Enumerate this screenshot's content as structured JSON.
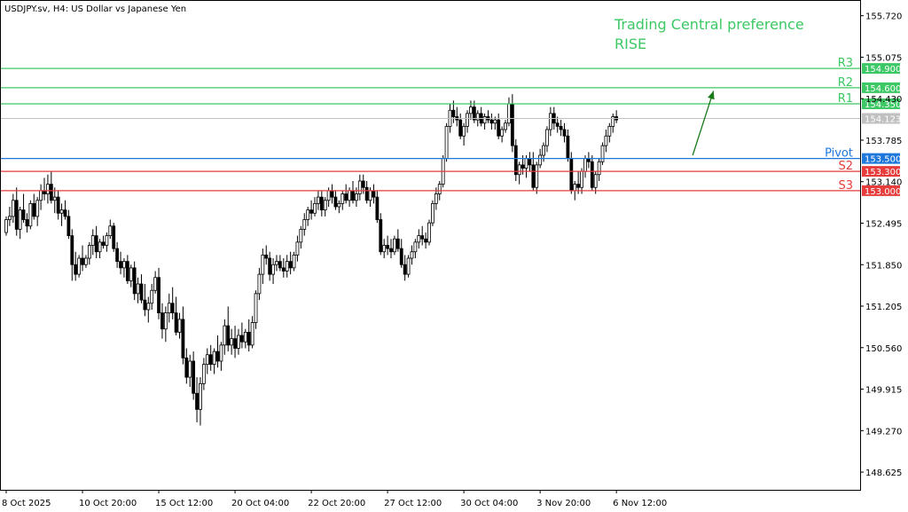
{
  "chart_data": {
    "type": "candlestick",
    "title": "USDJPY.sv, H4:  US Dollar vs Japanese Yen",
    "annotation": {
      "line1": "Trading Central preference",
      "line2": "RISE",
      "color": "#3cc864"
    },
    "ylim": [
      148.35,
      155.95
    ],
    "y_ticks": [
      155.72,
      155.075,
      154.43,
      153.785,
      153.14,
      152.495,
      151.85,
      151.205,
      150.56,
      149.915,
      149.27,
      148.625
    ],
    "y_tick_labels": [
      "155.720",
      "155.075",
      "154.430",
      "153.785",
      "153.140",
      "152.495",
      "151.850",
      "151.205",
      "150.560",
      "149.915",
      "149.270",
      "148.625"
    ],
    "x_tick_labels": [
      {
        "bar": 0,
        "label": "8 Oct 2025"
      },
      {
        "bar": 22,
        "label": "10 Oct 20:00"
      },
      {
        "bar": 44,
        "label": "15 Oct 12:00"
      },
      {
        "bar": 66,
        "label": "20 Oct 04:00"
      },
      {
        "bar": 88,
        "label": "22 Oct 20:00"
      },
      {
        "bar": 110,
        "label": "27 Oct 12:00"
      },
      {
        "bar": 132,
        "label": "30 Oct 04:00"
      },
      {
        "bar": 154,
        "label": "3 Nov 20:00"
      },
      {
        "bar": 176,
        "label": "6 Nov 12:00"
      }
    ],
    "levels": [
      {
        "name": "R3",
        "value": 154.9,
        "label": "154.900",
        "color": "#3cc864"
      },
      {
        "name": "R2",
        "value": 154.6,
        "label": "154.600",
        "color": "#3cc864"
      },
      {
        "name": "R1",
        "value": 154.35,
        "label": "154.350",
        "color": "#3cc864"
      },
      {
        "name": "Pivot",
        "value": 153.5,
        "label": "153.500",
        "color": "#1e78dc"
      },
      {
        "name": "S2",
        "value": 153.3,
        "label": "153.300",
        "color": "#e63c3c"
      },
      {
        "name": "S3",
        "value": 153.0,
        "label": "153.000",
        "color": "#e63c3c"
      }
    ],
    "current_price": {
      "value": 154.123,
      "label": "154.123",
      "color": "#c0c0c0"
    },
    "arrow": {
      "from": {
        "bar": 198,
        "price": 153.55
      },
      "to": {
        "bar": 204,
        "price": 154.55
      },
      "color": "#1a7a1a"
    },
    "candles": [
      [
        152.35,
        152.6,
        152.3,
        152.55
      ],
      [
        152.55,
        152.75,
        152.45,
        152.6
      ],
      [
        152.6,
        152.95,
        152.5,
        152.85
      ],
      [
        152.85,
        153.05,
        152.3,
        152.4
      ],
      [
        152.4,
        152.75,
        152.25,
        152.7
      ],
      [
        152.7,
        152.95,
        152.5,
        152.55
      ],
      [
        152.55,
        152.65,
        152.35,
        152.45
      ],
      [
        152.45,
        152.85,
        152.4,
        152.8
      ],
      [
        152.8,
        152.95,
        152.55,
        152.6
      ],
      [
        152.6,
        152.9,
        152.45,
        152.85
      ],
      [
        152.85,
        153.1,
        152.7,
        153.0
      ],
      [
        153.0,
        153.2,
        152.85,
        152.95
      ],
      [
        152.95,
        153.25,
        152.8,
        153.1
      ],
      [
        153.1,
        153.3,
        152.8,
        152.85
      ],
      [
        152.85,
        153.05,
        152.65,
        152.9
      ],
      [
        152.9,
        153.0,
        152.55,
        152.65
      ],
      [
        152.65,
        152.8,
        152.45,
        152.7
      ],
      [
        152.7,
        152.85,
        152.55,
        152.6
      ],
      [
        152.6,
        152.7,
        152.25,
        152.3
      ],
      [
        152.3,
        152.4,
        151.6,
        151.85
      ],
      [
        151.85,
        152.05,
        151.6,
        151.7
      ],
      [
        151.7,
        152.0,
        151.65,
        151.95
      ],
      [
        151.95,
        152.15,
        151.75,
        151.85
      ],
      [
        151.85,
        152.0,
        151.8,
        151.95
      ],
      [
        151.95,
        152.2,
        151.85,
        152.15
      ],
      [
        152.15,
        152.4,
        152.0,
        152.3
      ],
      [
        152.3,
        152.45,
        151.95,
        152.05
      ],
      [
        152.05,
        152.25,
        151.95,
        152.2
      ],
      [
        152.2,
        152.3,
        152.1,
        152.15
      ],
      [
        152.15,
        152.35,
        152.05,
        152.3
      ],
      [
        152.3,
        152.55,
        152.25,
        152.45
      ],
      [
        152.45,
        152.5,
        152.05,
        152.1
      ],
      [
        152.1,
        152.2,
        151.8,
        151.9
      ],
      [
        151.9,
        152.05,
        151.7,
        151.8
      ],
      [
        151.8,
        151.95,
        151.65,
        151.9
      ],
      [
        151.9,
        152.0,
        151.55,
        151.6
      ],
      [
        151.6,
        151.85,
        151.5,
        151.8
      ],
      [
        151.8,
        151.9,
        151.3,
        151.4
      ],
      [
        151.4,
        151.65,
        151.25,
        151.55
      ],
      [
        151.55,
        151.7,
        151.25,
        151.3
      ],
      [
        151.3,
        151.55,
        151.05,
        151.15
      ],
      [
        151.15,
        151.35,
        150.95,
        151.25
      ],
      [
        151.25,
        151.55,
        151.15,
        151.45
      ],
      [
        151.45,
        151.75,
        151.4,
        151.65
      ],
      [
        151.65,
        151.8,
        151.0,
        151.1
      ],
      [
        151.1,
        151.25,
        150.7,
        150.85
      ],
      [
        150.85,
        151.2,
        150.65,
        151.1
      ],
      [
        151.1,
        151.4,
        150.95,
        151.25
      ],
      [
        151.25,
        151.5,
        151.0,
        151.1
      ],
      [
        151.1,
        151.35,
        150.75,
        150.8
      ],
      [
        150.8,
        151.1,
        150.7,
        151.0
      ],
      [
        151.0,
        151.2,
        150.3,
        150.4
      ],
      [
        150.4,
        150.55,
        150.0,
        150.1
      ],
      [
        150.1,
        150.45,
        149.95,
        150.35
      ],
      [
        150.35,
        150.5,
        149.75,
        149.85
      ],
      [
        149.85,
        150.1,
        149.4,
        149.6
      ],
      [
        149.6,
        150.1,
        149.35,
        150.0
      ],
      [
        150.0,
        150.4,
        149.9,
        150.3
      ],
      [
        150.3,
        150.55,
        150.15,
        150.45
      ],
      [
        150.45,
        150.6,
        150.2,
        150.3
      ],
      [
        150.3,
        150.55,
        150.15,
        150.5
      ],
      [
        150.5,
        150.75,
        150.25,
        150.35
      ],
      [
        150.35,
        150.65,
        150.2,
        150.6
      ],
      [
        150.6,
        151.0,
        150.45,
        150.9
      ],
      [
        150.9,
        151.2,
        150.5,
        150.6
      ],
      [
        150.6,
        150.85,
        150.45,
        150.7
      ],
      [
        150.7,
        150.9,
        150.4,
        150.55
      ],
      [
        150.55,
        150.85,
        150.45,
        150.75
      ],
      [
        150.75,
        150.95,
        150.55,
        150.65
      ],
      [
        150.65,
        150.85,
        150.55,
        150.8
      ],
      [
        150.8,
        151.0,
        150.5,
        150.6
      ],
      [
        150.6,
        151.05,
        150.55,
        150.95
      ],
      [
        150.95,
        151.45,
        150.85,
        151.4
      ],
      [
        151.4,
        151.8,
        151.3,
        151.7
      ],
      [
        151.7,
        152.1,
        151.55,
        152.0
      ],
      [
        152.0,
        152.15,
        151.85,
        151.95
      ],
      [
        151.95,
        152.05,
        151.6,
        151.7
      ],
      [
        151.7,
        151.95,
        151.55,
        151.85
      ],
      [
        151.85,
        152.0,
        151.75,
        151.9
      ],
      [
        151.9,
        152.0,
        151.75,
        151.8
      ],
      [
        151.8,
        151.95,
        151.65,
        151.75
      ],
      [
        151.75,
        152.0,
        151.65,
        151.9
      ],
      [
        151.9,
        152.05,
        151.7,
        151.8
      ],
      [
        151.8,
        152.05,
        151.75,
        152.0
      ],
      [
        152.0,
        152.3,
        151.9,
        152.2
      ],
      [
        152.2,
        152.45,
        152.1,
        152.4
      ],
      [
        152.4,
        152.65,
        152.3,
        152.55
      ],
      [
        152.55,
        152.75,
        152.45,
        152.7
      ],
      [
        152.7,
        152.85,
        152.55,
        152.65
      ],
      [
        152.65,
        152.9,
        152.6,
        152.8
      ],
      [
        152.8,
        153.0,
        152.7,
        152.9
      ],
      [
        152.9,
        153.0,
        152.6,
        152.7
      ],
      [
        152.7,
        152.9,
        152.6,
        152.85
      ],
      [
        152.85,
        153.05,
        152.75,
        153.0
      ],
      [
        153.0,
        153.1,
        152.8,
        152.9
      ],
      [
        152.9,
        153.0,
        152.7,
        152.75
      ],
      [
        152.75,
        152.85,
        152.65,
        152.8
      ],
      [
        152.8,
        153.0,
        152.7,
        152.95
      ],
      [
        152.95,
        153.1,
        152.8,
        152.85
      ],
      [
        152.85,
        153.05,
        152.75,
        153.0
      ],
      [
        153.0,
        153.15,
        152.8,
        152.85
      ],
      [
        152.85,
        153.05,
        152.75,
        152.95
      ],
      [
        152.95,
        153.25,
        152.85,
        153.15
      ],
      [
        153.15,
        153.25,
        152.95,
        153.05
      ],
      [
        153.05,
        153.15,
        152.8,
        152.85
      ],
      [
        152.85,
        153.05,
        152.75,
        153.0
      ],
      [
        153.0,
        153.1,
        152.8,
        152.9
      ],
      [
        152.9,
        153.0,
        152.5,
        152.55
      ],
      [
        152.55,
        152.65,
        152.0,
        152.05
      ],
      [
        152.05,
        152.25,
        151.95,
        152.15
      ],
      [
        152.15,
        152.3,
        152.0,
        152.1
      ],
      [
        152.1,
        152.25,
        151.95,
        152.05
      ],
      [
        152.05,
        152.3,
        152.0,
        152.25
      ],
      [
        152.25,
        152.4,
        152.05,
        152.1
      ],
      [
        152.1,
        152.25,
        151.8,
        151.85
      ],
      [
        151.85,
        152.0,
        151.6,
        151.7
      ],
      [
        151.7,
        152.0,
        151.65,
        151.95
      ],
      [
        151.95,
        152.15,
        151.85,
        152.05
      ],
      [
        152.05,
        152.25,
        151.95,
        152.2
      ],
      [
        152.2,
        152.4,
        152.1,
        152.3
      ],
      [
        152.3,
        152.45,
        152.15,
        152.25
      ],
      [
        152.25,
        152.35,
        152.1,
        152.2
      ],
      [
        152.2,
        152.55,
        152.15,
        152.5
      ],
      [
        152.5,
        152.85,
        152.45,
        152.8
      ],
      [
        152.8,
        153.05,
        152.7,
        152.95
      ],
      [
        152.95,
        153.15,
        152.85,
        153.1
      ],
      [
        153.1,
        153.55,
        153.05,
        153.5
      ],
      [
        153.5,
        154.05,
        153.45,
        154.0
      ],
      [
        154.0,
        154.35,
        153.9,
        154.25
      ],
      [
        154.25,
        154.4,
        154.05,
        154.15
      ],
      [
        154.15,
        154.3,
        154.0,
        154.1
      ],
      [
        154.1,
        154.2,
        153.8,
        153.85
      ],
      [
        153.85,
        154.05,
        153.7,
        154.0
      ],
      [
        154.0,
        154.25,
        153.9,
        154.2
      ],
      [
        154.2,
        154.4,
        154.1,
        154.3
      ],
      [
        154.3,
        154.4,
        154.05,
        154.1
      ],
      [
        154.1,
        154.25,
        154.0,
        154.2
      ],
      [
        154.2,
        154.3,
        154.0,
        154.05
      ],
      [
        154.05,
        154.2,
        153.95,
        154.15
      ],
      [
        154.15,
        154.25,
        154.05,
        154.1
      ],
      [
        154.1,
        154.2,
        153.95,
        154.05
      ],
      [
        154.05,
        154.15,
        153.95,
        154.1
      ],
      [
        154.1,
        154.2,
        153.8,
        153.85
      ],
      [
        153.85,
        154.0,
        153.75,
        153.95
      ],
      [
        153.95,
        154.1,
        153.9,
        154.05
      ],
      [
        154.05,
        154.45,
        154.0,
        154.35
      ],
      [
        154.35,
        154.5,
        153.6,
        153.7
      ],
      [
        153.7,
        153.8,
        153.15,
        153.25
      ],
      [
        153.25,
        153.45,
        153.1,
        153.4
      ],
      [
        153.4,
        153.55,
        153.25,
        153.35
      ],
      [
        153.35,
        153.55,
        153.2,
        153.5
      ],
      [
        153.5,
        153.6,
        153.3,
        153.4
      ],
      [
        153.4,
        153.6,
        153.0,
        153.05
      ],
      [
        153.05,
        153.45,
        152.95,
        153.4
      ],
      [
        153.4,
        153.65,
        153.35,
        153.55
      ],
      [
        153.55,
        153.75,
        153.45,
        153.7
      ],
      [
        153.7,
        154.0,
        153.6,
        153.95
      ],
      [
        153.95,
        154.3,
        153.85,
        154.2
      ],
      [
        154.2,
        154.3,
        153.95,
        154.05
      ],
      [
        154.05,
        154.15,
        153.9,
        154.0
      ],
      [
        154.0,
        154.1,
        153.85,
        153.95
      ],
      [
        153.95,
        154.05,
        153.75,
        153.85
      ],
      [
        153.85,
        153.95,
        153.45,
        153.5
      ],
      [
        153.5,
        153.6,
        152.95,
        153.0
      ],
      [
        153.0,
        153.15,
        152.85,
        153.1
      ],
      [
        153.1,
        153.3,
        152.95,
        153.05
      ],
      [
        153.05,
        153.35,
        152.95,
        153.3
      ],
      [
        153.3,
        153.55,
        153.2,
        153.5
      ],
      [
        153.5,
        153.6,
        153.35,
        153.45
      ],
      [
        153.45,
        153.55,
        153.0,
        153.05
      ],
      [
        153.05,
        153.3,
        152.95,
        153.25
      ],
      [
        153.25,
        153.5,
        153.15,
        153.45
      ],
      [
        153.45,
        153.75,
        153.4,
        153.7
      ],
      [
        153.7,
        153.95,
        153.6,
        153.85
      ],
      [
        153.85,
        154.05,
        153.75,
        154.0
      ],
      [
        154.0,
        154.2,
        153.9,
        154.15
      ],
      [
        154.15,
        154.25,
        154.05,
        154.1
      ]
    ]
  }
}
